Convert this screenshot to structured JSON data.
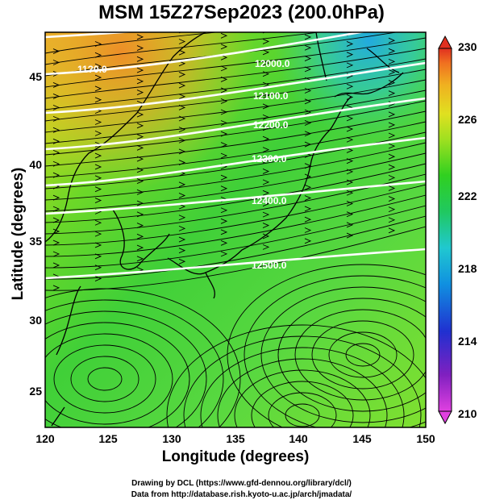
{
  "title": "MSM 15Z27Sep2023 (200.0hPa)",
  "xaxis": {
    "label": "Longitude (degrees)",
    "ticks": [
      "120",
      "125",
      "130",
      "135",
      "140",
      "145",
      "150"
    ],
    "range": [
      120,
      150
    ]
  },
  "yaxis": {
    "label": "Latitude  (degrees)",
    "ticks": [
      "25",
      "30",
      "35",
      "40",
      "45"
    ],
    "range": [
      22.4,
      47.6
    ]
  },
  "colorbar": {
    "ticks": [
      "210",
      "214",
      "218",
      "222",
      "226",
      "230"
    ],
    "range": [
      210,
      230
    ],
    "colors": [
      "#e040e0",
      "#8020c0",
      "#2030d0",
      "#1090e0",
      "#20c8d0",
      "#20c860",
      "#30d020",
      "#a0e020",
      "#e0e020",
      "#f0b020",
      "#f07020",
      "#e03020"
    ]
  },
  "contours": {
    "color": "#ffffff",
    "labels": [
      "11?0.0",
      "12000.0",
      "12100.0",
      "12200.0",
      "12300.0",
      "12400.0",
      "12500.0"
    ]
  },
  "credits": {
    "line1": "Drawing by DCL (https://www.gfd-dennou.org/library/dcl/)",
    "line2": "Data from http://database.rish.kyoto-u.ac.jp/arch/jmadata/"
  }
}
